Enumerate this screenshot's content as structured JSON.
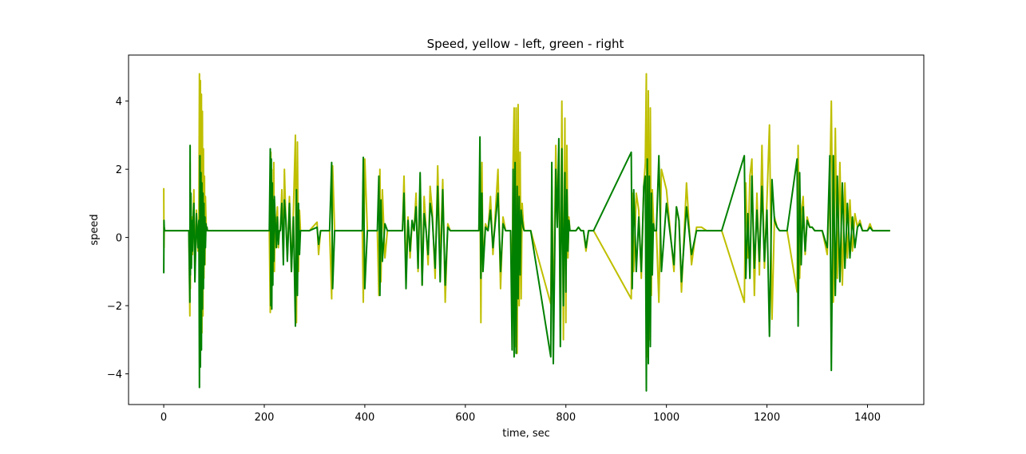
{
  "chart_data": {
    "type": "line",
    "title": "Speed, yellow - left, green - right",
    "xlabel": "time, sec",
    "ylabel": "speed",
    "xlim": [
      -70,
      1512
    ],
    "ylim": [
      -4.9,
      5.35
    ],
    "xticks": [
      0,
      200,
      400,
      600,
      800,
      1000,
      1200,
      1400
    ],
    "yticks": [
      -4,
      -2,
      0,
      2,
      4
    ],
    "ytick_labels": [
      "−4",
      "−2",
      "0",
      "2",
      "4"
    ],
    "grid": false,
    "legend": "none",
    "series": [
      {
        "color": "#bfbf00",
        "x": [
          0,
          0.5,
          1,
          2,
          3,
          10,
          50,
          52,
          52.5,
          53,
          54,
          55,
          56,
          57,
          58,
          60,
          62,
          65,
          68,
          70,
          71,
          72,
          73,
          74,
          75,
          76,
          77,
          78,
          79,
          80,
          81,
          82,
          83,
          84,
          85,
          86,
          87,
          88,
          89,
          90,
          92,
          95,
          100,
          210,
          212,
          213,
          214,
          215,
          216,
          217,
          218,
          219,
          220,
          222,
          224,
          226,
          228,
          230,
          232,
          235,
          238,
          240,
          243,
          246,
          250,
          254,
          258,
          262,
          264,
          266,
          268,
          270,
          272,
          275,
          280,
          290,
          305,
          308,
          312,
          320,
          330,
          334,
          336,
          340,
          350,
          395,
          397,
          400,
          405,
          410,
          425,
          428,
          430,
          432,
          435,
          440,
          445,
          450,
          470,
          475,
          478,
          482,
          486,
          490,
          494,
          498,
          502,
          506,
          510,
          514,
          518,
          522,
          526,
          530,
          534,
          540,
          545,
          550,
          555,
          560,
          565,
          570,
          625,
          627,
          629,
          631,
          633,
          635,
          640,
          645,
          650,
          655,
          660,
          665,
          670,
          675,
          680,
          690,
          693,
          695,
          697,
          699,
          701,
          703,
          705,
          707,
          709,
          711,
          713,
          715,
          717,
          720,
          725,
          730,
          770,
          772,
          775,
          780,
          783,
          786,
          789,
          792,
          795,
          798,
          800,
          802,
          804,
          806,
          808,
          810,
          812,
          815,
          820,
          825,
          830,
          835,
          840,
          845,
          850,
          855,
          930,
          932,
          935,
          940,
          945,
          950,
          955,
          958,
          960,
          962,
          964,
          966,
          968,
          970,
          972,
          974,
          976,
          978,
          980,
          985,
          990,
          1000,
          1015,
          1020,
          1025,
          1030,
          1040,
          1050,
          1060,
          1070,
          1080,
          1090,
          1100,
          1110,
          1155,
          1158,
          1162,
          1166,
          1170,
          1175,
          1180,
          1185,
          1190,
          1195,
          1200,
          1205,
          1210,
          1215,
          1220,
          1225,
          1230,
          1240,
          1260,
          1262,
          1265,
          1268,
          1272,
          1276,
          1280,
          1285,
          1290,
          1295,
          1300,
          1310,
          1320,
          1325,
          1328,
          1332,
          1336,
          1340,
          1345,
          1350,
          1355,
          1360,
          1365,
          1370,
          1375,
          1380,
          1385,
          1390,
          1395,
          1400,
          1405,
          1410,
          1445
        ],
        "y": [
          1.45,
          -0.3,
          0.3,
          0.2,
          0.2,
          0.2,
          0.2,
          -2.3,
          2.2,
          -1.5,
          1.2,
          -0.8,
          0.6,
          -0.5,
          0.3,
          1.4,
          -1.2,
          0.8,
          -0.4,
          0.6,
          4.8,
          -3.4,
          4.6,
          -3.3,
          4.2,
          -2.8,
          3.7,
          -2.3,
          2.6,
          -1.2,
          1.8,
          -0.8,
          1.2,
          0.5,
          0.2,
          0.3,
          0.2,
          0.2,
          0.2,
          0.2,
          0.2,
          0.2,
          0.2,
          0.2,
          -2.2,
          2.5,
          -1.8,
          2.0,
          -1.2,
          1.5,
          -0.6,
          2.2,
          -1.0,
          0.6,
          0.3,
          0.9,
          -0.3,
          0.2,
          0.2,
          1.4,
          -0.6,
          2.0,
          0.4,
          -0.6,
          1.2,
          -1.0,
          0.8,
          3.0,
          -2.5,
          2.8,
          -1.0,
          0.8,
          0.2,
          0.2,
          0.2,
          0.2,
          0.45,
          -0.5,
          0.2,
          0.2,
          0.2,
          -1.8,
          2.1,
          0.2,
          0.2,
          0.2,
          -1.9,
          2.3,
          0.2,
          0.2,
          0.2,
          -1.7,
          2.0,
          -1.3,
          1.4,
          -0.6,
          0.2,
          0.2,
          0.2,
          0.2,
          1.8,
          -1.0,
          0.6,
          -0.6,
          0.4,
          0.2,
          1.3,
          -1.0,
          1.6,
          -1.4,
          1.2,
          0.2,
          -0.8,
          1.5,
          0.8,
          -1.2,
          2.1,
          -0.8,
          1.7,
          -1.9,
          0.4,
          0.2,
          0.2,
          0.2,
          1.5,
          -2.5,
          2.2,
          -0.8,
          0.4,
          0.2,
          1.2,
          -0.5,
          0.8,
          2.0,
          -1.5,
          0.6,
          0.2,
          0.2,
          -1.9,
          2.2,
          3.8,
          -3.2,
          3.8,
          -3.4,
          3.9,
          -2.0,
          2.5,
          -1.8,
          1.0,
          0.5,
          0.2,
          0.2,
          0.2,
          0.2,
          -1.95,
          1.5,
          -2.6,
          2.7,
          0.4,
          2.5,
          -2.6,
          4.0,
          -3.0,
          3.5,
          -2.5,
          2.7,
          -0.6,
          0.6,
          0.2,
          0.2,
          0.2,
          0.2,
          0.2,
          0.3,
          0.2,
          0.2,
          -0.4,
          0.2,
          0.2,
          0.2,
          -1.8,
          1.3,
          -1.0,
          1.3,
          0.8,
          -1.2,
          1.5,
          2.2,
          4.8,
          -3.5,
          4.3,
          -3.0,
          3.8,
          -1.7,
          1.4,
          0.6,
          0.2,
          0.2,
          0.2,
          -1.9,
          2.0,
          1.4,
          -1.0,
          0.9,
          0.5,
          -1.6,
          1.6,
          -0.8,
          0.3,
          0.3,
          0.2,
          0.2,
          0.2,
          0.2,
          -1.9,
          1.6,
          -0.6,
          1.8,
          2.3,
          -1.7,
          1.3,
          -1.1,
          2.7,
          -0.9,
          1.1,
          3.3,
          -2.4,
          0.6,
          0.3,
          0.2,
          0.2,
          0.2,
          -1.6,
          2.7,
          -1.2,
          0.7,
          1.2,
          -0.5,
          0.6,
          0.3,
          0.3,
          0.2,
          0.2,
          0.2,
          -0.5,
          1.5,
          4.0,
          -1.9,
          3.2,
          -1.2,
          2.2,
          -1.4,
          1.6,
          -0.6,
          1.1,
          -0.4,
          0.7,
          0.3,
          0.5,
          0.2,
          0.2,
          0.2,
          0.4,
          0.2,
          0.2
        ]
      },
      {
        "color": "#008000",
        "x": [
          0,
          0.5,
          1,
          2,
          3,
          10,
          50,
          52,
          52.5,
          53,
          54,
          55,
          56,
          57,
          58,
          60,
          62,
          65,
          68,
          70,
          71,
          72,
          73,
          74,
          75,
          76,
          77,
          78,
          79,
          80,
          81,
          82,
          83,
          84,
          85,
          86,
          87,
          88,
          89,
          90,
          92,
          95,
          100,
          210,
          212,
          213,
          214,
          215,
          216,
          217,
          218,
          219,
          220,
          222,
          224,
          226,
          228,
          230,
          232,
          235,
          238,
          240,
          243,
          246,
          250,
          254,
          258,
          262,
          264,
          266,
          268,
          270,
          272,
          275,
          280,
          290,
          305,
          308,
          312,
          320,
          330,
          334,
          336,
          340,
          350,
          395,
          397,
          400,
          405,
          410,
          425,
          428,
          430,
          432,
          435,
          440,
          445,
          450,
          470,
          475,
          478,
          482,
          486,
          490,
          494,
          498,
          502,
          506,
          510,
          514,
          518,
          522,
          526,
          530,
          534,
          540,
          545,
          550,
          555,
          560,
          565,
          570,
          625,
          627,
          629,
          631,
          633,
          635,
          640,
          645,
          650,
          655,
          660,
          665,
          670,
          675,
          680,
          690,
          693,
          695,
          697,
          699,
          701,
          703,
          705,
          707,
          709,
          711,
          713,
          715,
          717,
          720,
          725,
          730,
          770,
          772,
          775,
          780,
          783,
          786,
          789,
          792,
          795,
          798,
          800,
          802,
          804,
          806,
          808,
          810,
          812,
          815,
          820,
          825,
          830,
          835,
          840,
          845,
          850,
          855,
          930,
          932,
          935,
          940,
          945,
          950,
          955,
          958,
          960,
          962,
          964,
          966,
          968,
          970,
          972,
          974,
          976,
          978,
          980,
          985,
          990,
          1000,
          1015,
          1020,
          1025,
          1030,
          1040,
          1050,
          1060,
          1070,
          1080,
          1090,
          1100,
          1110,
          1155,
          1158,
          1162,
          1166,
          1170,
          1175,
          1180,
          1185,
          1190,
          1195,
          1200,
          1205,
          1210,
          1215,
          1220,
          1225,
          1230,
          1240,
          1260,
          1262,
          1265,
          1268,
          1272,
          1276,
          1280,
          1285,
          1290,
          1295,
          1300,
          1310,
          1320,
          1325,
          1328,
          1332,
          1336,
          1340,
          1345,
          1350,
          1355,
          1360,
          1365,
          1370,
          1375,
          1380,
          1385,
          1390,
          1395,
          1400,
          1405,
          1410,
          1445
        ],
        "y": [
          -1.05,
          0.5,
          0.3,
          0.2,
          0.2,
          0.2,
          0.2,
          -1.9,
          2.7,
          -1.1,
          1.3,
          -0.9,
          0.5,
          -0.4,
          0.3,
          1.0,
          -1.3,
          0.7,
          -0.3,
          0.5,
          -4.4,
          2.4,
          -3.8,
          1.9,
          -3.3,
          1.6,
          -2.1,
          1.3,
          -1.5,
          1.0,
          -0.8,
          0.6,
          -0.3,
          0.4,
          0.2,
          0.3,
          0.2,
          0.2,
          0.2,
          0.2,
          0.2,
          0.2,
          0.2,
          0.2,
          2.6,
          -2.0,
          2.3,
          -2.1,
          1.6,
          -1.4,
          1.1,
          -0.7,
          1.2,
          0.5,
          -0.3,
          0.6,
          -0.2,
          0.2,
          0.2,
          1.0,
          -0.8,
          1.1,
          0.5,
          -0.7,
          1.0,
          -1.0,
          0.6,
          -2.6,
          1.4,
          -1.7,
          1.0,
          -0.5,
          0.2,
          0.2,
          0.2,
          0.2,
          0.3,
          -0.2,
          0.2,
          0.2,
          0.2,
          2.2,
          -1.5,
          0.2,
          0.2,
          0.2,
          2.35,
          -1.5,
          0.2,
          0.2,
          0.2,
          1.8,
          -1.7,
          1.1,
          -0.7,
          0.4,
          0.2,
          0.2,
          0.2,
          0.2,
          1.3,
          -1.5,
          0.5,
          -0.4,
          0.5,
          0.2,
          0.9,
          -0.9,
          1.9,
          -1.4,
          0.7,
          0.2,
          -0.5,
          1.0,
          0.6,
          -0.9,
          1.5,
          -1.3,
          1.4,
          -1.4,
          0.3,
          0.2,
          0.2,
          0.2,
          2.95,
          -1.2,
          1.3,
          -1.0,
          0.3,
          0.2,
          0.8,
          -0.3,
          0.5,
          1.3,
          -1.0,
          0.4,
          0.2,
          0.2,
          -3.3,
          2.0,
          -3.5,
          2.2,
          -3.4,
          1.5,
          -1.8,
          1.2,
          -1.1,
          0.8,
          0.5,
          0.3,
          0.2,
          0.2,
          0.2,
          0.2,
          -3.5,
          2.2,
          -3.7,
          2.0,
          0.3,
          2.9,
          -3.2,
          2.6,
          -2.0,
          1.9,
          -1.6,
          1.4,
          -0.4,
          0.5,
          0.2,
          0.2,
          0.2,
          0.2,
          0.2,
          0.3,
          0.2,
          0.2,
          -0.3,
          0.2,
          0.2,
          0.2,
          2.5,
          -1.5,
          1.4,
          -1.0,
          0.6,
          -1.0,
          1.5,
          1.8,
          -4.5,
          2.3,
          -3.7,
          1.8,
          -3.2,
          1.3,
          -1.1,
          0.4,
          0.2,
          0.2,
          0.2,
          2.4,
          -1.0,
          1.0,
          -0.8,
          0.9,
          0.5,
          -1.3,
          0.9,
          -0.5,
          0.2,
          0.2,
          0.2,
          0.2,
          0.2,
          0.2,
          2.4,
          -1.2,
          0.7,
          -1.2,
          1.8,
          -0.9,
          0.8,
          -0.7,
          1.5,
          -0.7,
          0.8,
          -2.9,
          1.7,
          0.5,
          0.3,
          0.2,
          0.2,
          0.2,
          2.3,
          -2.6,
          1.9,
          -0.8,
          0.9,
          -0.4,
          0.5,
          0.3,
          0.3,
          0.2,
          0.2,
          0.2,
          -0.3,
          2.4,
          -3.9,
          2.4,
          -1.7,
          1.8,
          -1.3,
          1.6,
          -0.9,
          1.0,
          -0.6,
          0.6,
          -0.3,
          0.3,
          0.4,
          0.2,
          0.2,
          0.2,
          0.3,
          0.2,
          0.2
        ]
      }
    ]
  }
}
